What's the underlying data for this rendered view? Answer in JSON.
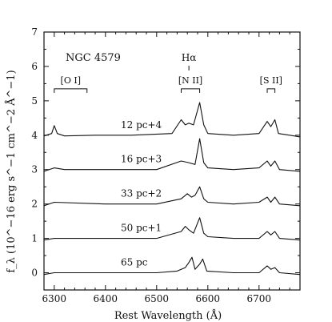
{
  "chart_data": {
    "type": "line",
    "title": "",
    "object_label": "NGC 4579",
    "xlabel": "Rest Wavelength (Å)",
    "ylabel": "f_λ (10^−16 erg s^−1 cm^−2 Å^−1)",
    "xlim": [
      6280,
      6780
    ],
    "ylim": [
      -0.5,
      7
    ],
    "x_ticks": [
      6300,
      6400,
      6500,
      6600,
      6700
    ],
    "y_ticks": [
      0,
      1,
      2,
      3,
      4,
      5,
      6,
      7
    ],
    "grid": false,
    "line_markers": [
      {
        "label": "[O I]",
        "x_start": 6300,
        "x_end": 6364,
        "y": 5.35
      },
      {
        "label": "[N II]",
        "x_start": 6548,
        "x_end": 6584,
        "y": 5.35
      },
      {
        "label": "[S II]",
        "x_start": 6716,
        "x_end": 6731,
        "y": 5.35
      }
    ],
    "halpha": {
      "label": "Hα",
      "x": 6563
    },
    "series": [
      {
        "name": "12 pc+4",
        "offset": 4,
        "x": [
          6280,
          6295,
          6300,
          6306,
          6320,
          6380,
          6450,
          6530,
          6548,
          6556,
          6563,
          6572,
          6584,
          6592,
          6600,
          6650,
          6700,
          6716,
          6723,
          6731,
          6738,
          6760,
          6780
        ],
        "values": [
          3.98,
          4.05,
          4.28,
          4.05,
          3.98,
          4.0,
          4.0,
          4.05,
          4.45,
          4.3,
          4.35,
          4.3,
          4.95,
          4.3,
          4.05,
          4.0,
          4.05,
          4.4,
          4.25,
          4.45,
          4.05,
          4.0,
          3.95
        ]
      },
      {
        "name": "16 pc+3",
        "offset": 3,
        "x": [
          6280,
          6300,
          6320,
          6400,
          6500,
          6548,
          6563,
          6575,
          6584,
          6592,
          6600,
          6650,
          6700,
          6716,
          6723,
          6731,
          6740,
          6780
        ],
        "values": [
          2.95,
          3.05,
          3.0,
          3.0,
          3.0,
          3.25,
          3.2,
          3.15,
          3.9,
          3.2,
          3.05,
          3.0,
          3.05,
          3.25,
          3.1,
          3.25,
          3.0,
          2.95
        ]
      },
      {
        "name": "33 pc+2",
        "offset": 2,
        "x": [
          6280,
          6300,
          6400,
          6500,
          6548,
          6560,
          6568,
          6575,
          6584,
          6592,
          6600,
          6650,
          6700,
          6716,
          6723,
          6731,
          6740,
          6780
        ],
        "values": [
          1.95,
          2.05,
          2.0,
          2.0,
          2.15,
          2.3,
          2.2,
          2.25,
          2.5,
          2.15,
          2.05,
          2.0,
          2.05,
          2.2,
          2.05,
          2.2,
          2.0,
          1.95
        ]
      },
      {
        "name": "50 pc+1",
        "offset": 1,
        "x": [
          6280,
          6300,
          6400,
          6500,
          6548,
          6556,
          6563,
          6572,
          6584,
          6592,
          6600,
          6650,
          6700,
          6716,
          6723,
          6731,
          6740,
          6780
        ],
        "values": [
          0.95,
          1.0,
          1.0,
          1.0,
          1.2,
          1.35,
          1.25,
          1.15,
          1.6,
          1.15,
          1.05,
          1.0,
          1.0,
          1.2,
          1.1,
          1.2,
          1.0,
          0.95
        ]
      },
      {
        "name": "65 pc",
        "offset": 0,
        "x": [
          6280,
          6300,
          6400,
          6500,
          6540,
          6556,
          6563,
          6569,
          6575,
          6584,
          6590,
          6598,
          6650,
          6700,
          6716,
          6723,
          6731,
          6740,
          6780
        ],
        "values": [
          -0.05,
          0.0,
          0.0,
          0.0,
          0.05,
          0.15,
          0.3,
          0.45,
          0.1,
          0.25,
          0.4,
          0.05,
          0.0,
          0.0,
          0.2,
          0.1,
          0.15,
          0.0,
          -0.05
        ]
      }
    ]
  }
}
